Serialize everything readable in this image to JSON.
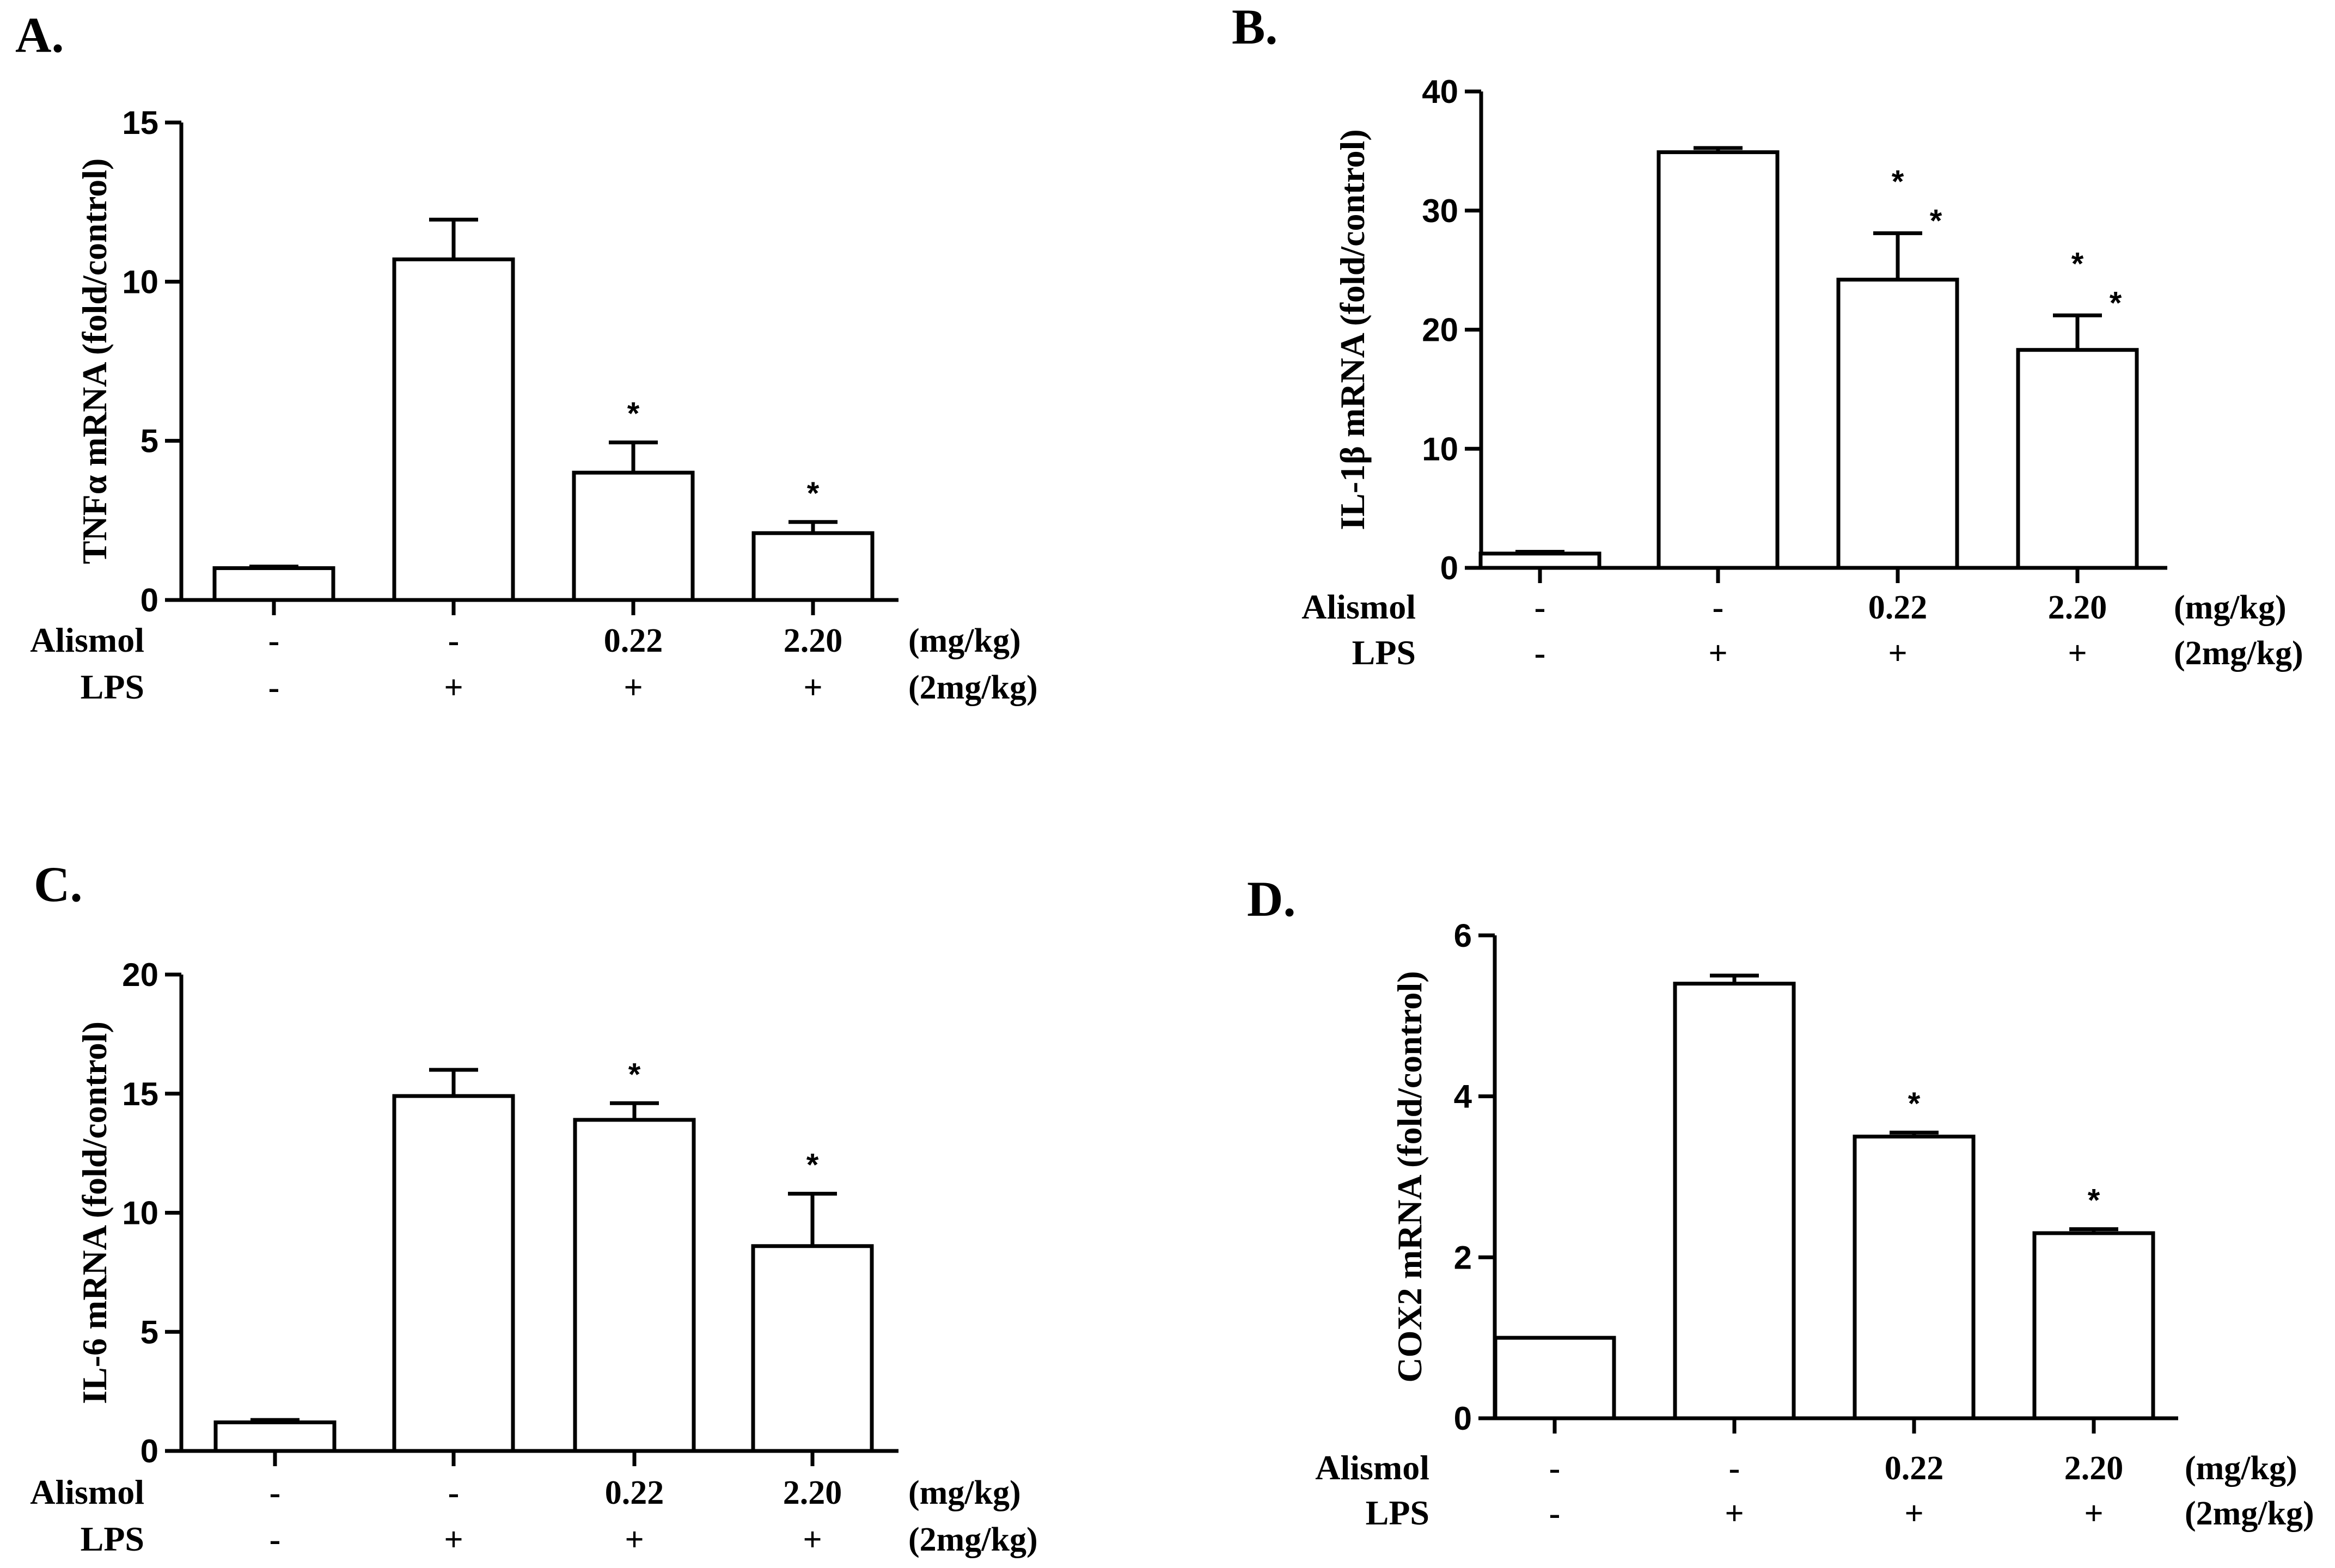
{
  "chart_data": [
    {
      "type": "bar",
      "panel": "A.",
      "ylabel": "TNFα mRNA (fold/control)",
      "ylim": [
        0,
        15
      ],
      "yticks": [
        0,
        5,
        10,
        15
      ],
      "values": [
        1.0,
        10.7,
        4.0,
        2.1
      ],
      "errors": [
        0.05,
        1.25,
        0.95,
        0.35
      ],
      "significance": [
        "",
        "",
        "*",
        "*"
      ],
      "rows": [
        {
          "label": "Alismol",
          "cells": [
            "-",
            "-",
            "0.22",
            "2.20"
          ],
          "unit": "(mg/kg)"
        },
        {
          "label": "LPS",
          "cells": [
            "-",
            "+",
            "+",
            "+"
          ],
          "unit": "(2mg/kg)"
        }
      ]
    },
    {
      "type": "bar",
      "panel": "B.",
      "ylabel": "IL-1β mRNA (fold/control)",
      "ylim": [
        0,
        40
      ],
      "yticks": [
        0,
        10,
        20,
        30,
        40
      ],
      "values": [
        1.2,
        34.9,
        24.2,
        18.3
      ],
      "errors": [
        0.15,
        0.35,
        3.9,
        2.9
      ],
      "significance": [
        "",
        "",
        "*\n*",
        "*\n*"
      ],
      "rows": [
        {
          "label": "Alismol",
          "cells": [
            "-",
            "-",
            "0.22",
            "2.20"
          ],
          "unit": "(mg/kg)"
        },
        {
          "label": "LPS",
          "cells": [
            "-",
            "+",
            "+",
            "+"
          ],
          "unit": "(2mg/kg)"
        }
      ]
    },
    {
      "type": "bar",
      "panel": "C.",
      "ylabel": "IL-6 mRNA (fold/control)",
      "ylim": [
        0,
        20
      ],
      "yticks": [
        0,
        5,
        10,
        15,
        20
      ],
      "values": [
        1.2,
        14.9,
        13.9,
        8.6
      ],
      "errors": [
        0.1,
        1.1,
        0.7,
        2.2
      ],
      "significance": [
        "",
        "",
        "*",
        "*"
      ],
      "rows": [
        {
          "label": "Alismol",
          "cells": [
            "-",
            "-",
            "0.22",
            "2.20"
          ],
          "unit": "(mg/kg)"
        },
        {
          "label": "LPS",
          "cells": [
            "-",
            "+",
            "+",
            "+"
          ],
          "unit": "(2mg/kg)"
        }
      ]
    },
    {
      "type": "bar",
      "panel": "D.",
      "ylabel": "COX2 mRNA (fold/control)",
      "ylim": [
        0,
        6
      ],
      "yticks": [
        0,
        2,
        4,
        6
      ],
      "values": [
        1.0,
        5.4,
        3.5,
        2.3
      ],
      "errors": [
        0.0,
        0.1,
        0.05,
        0.05
      ],
      "significance": [
        "",
        "",
        "*",
        "*"
      ],
      "rows": [
        {
          "label": "Alismol",
          "cells": [
            "-",
            "-",
            "0.22",
            "2.20"
          ],
          "unit": "(mg/kg)"
        },
        {
          "label": "LPS",
          "cells": [
            "-",
            "+",
            "+",
            "+"
          ],
          "unit": "(2mg/kg)"
        }
      ]
    }
  ]
}
